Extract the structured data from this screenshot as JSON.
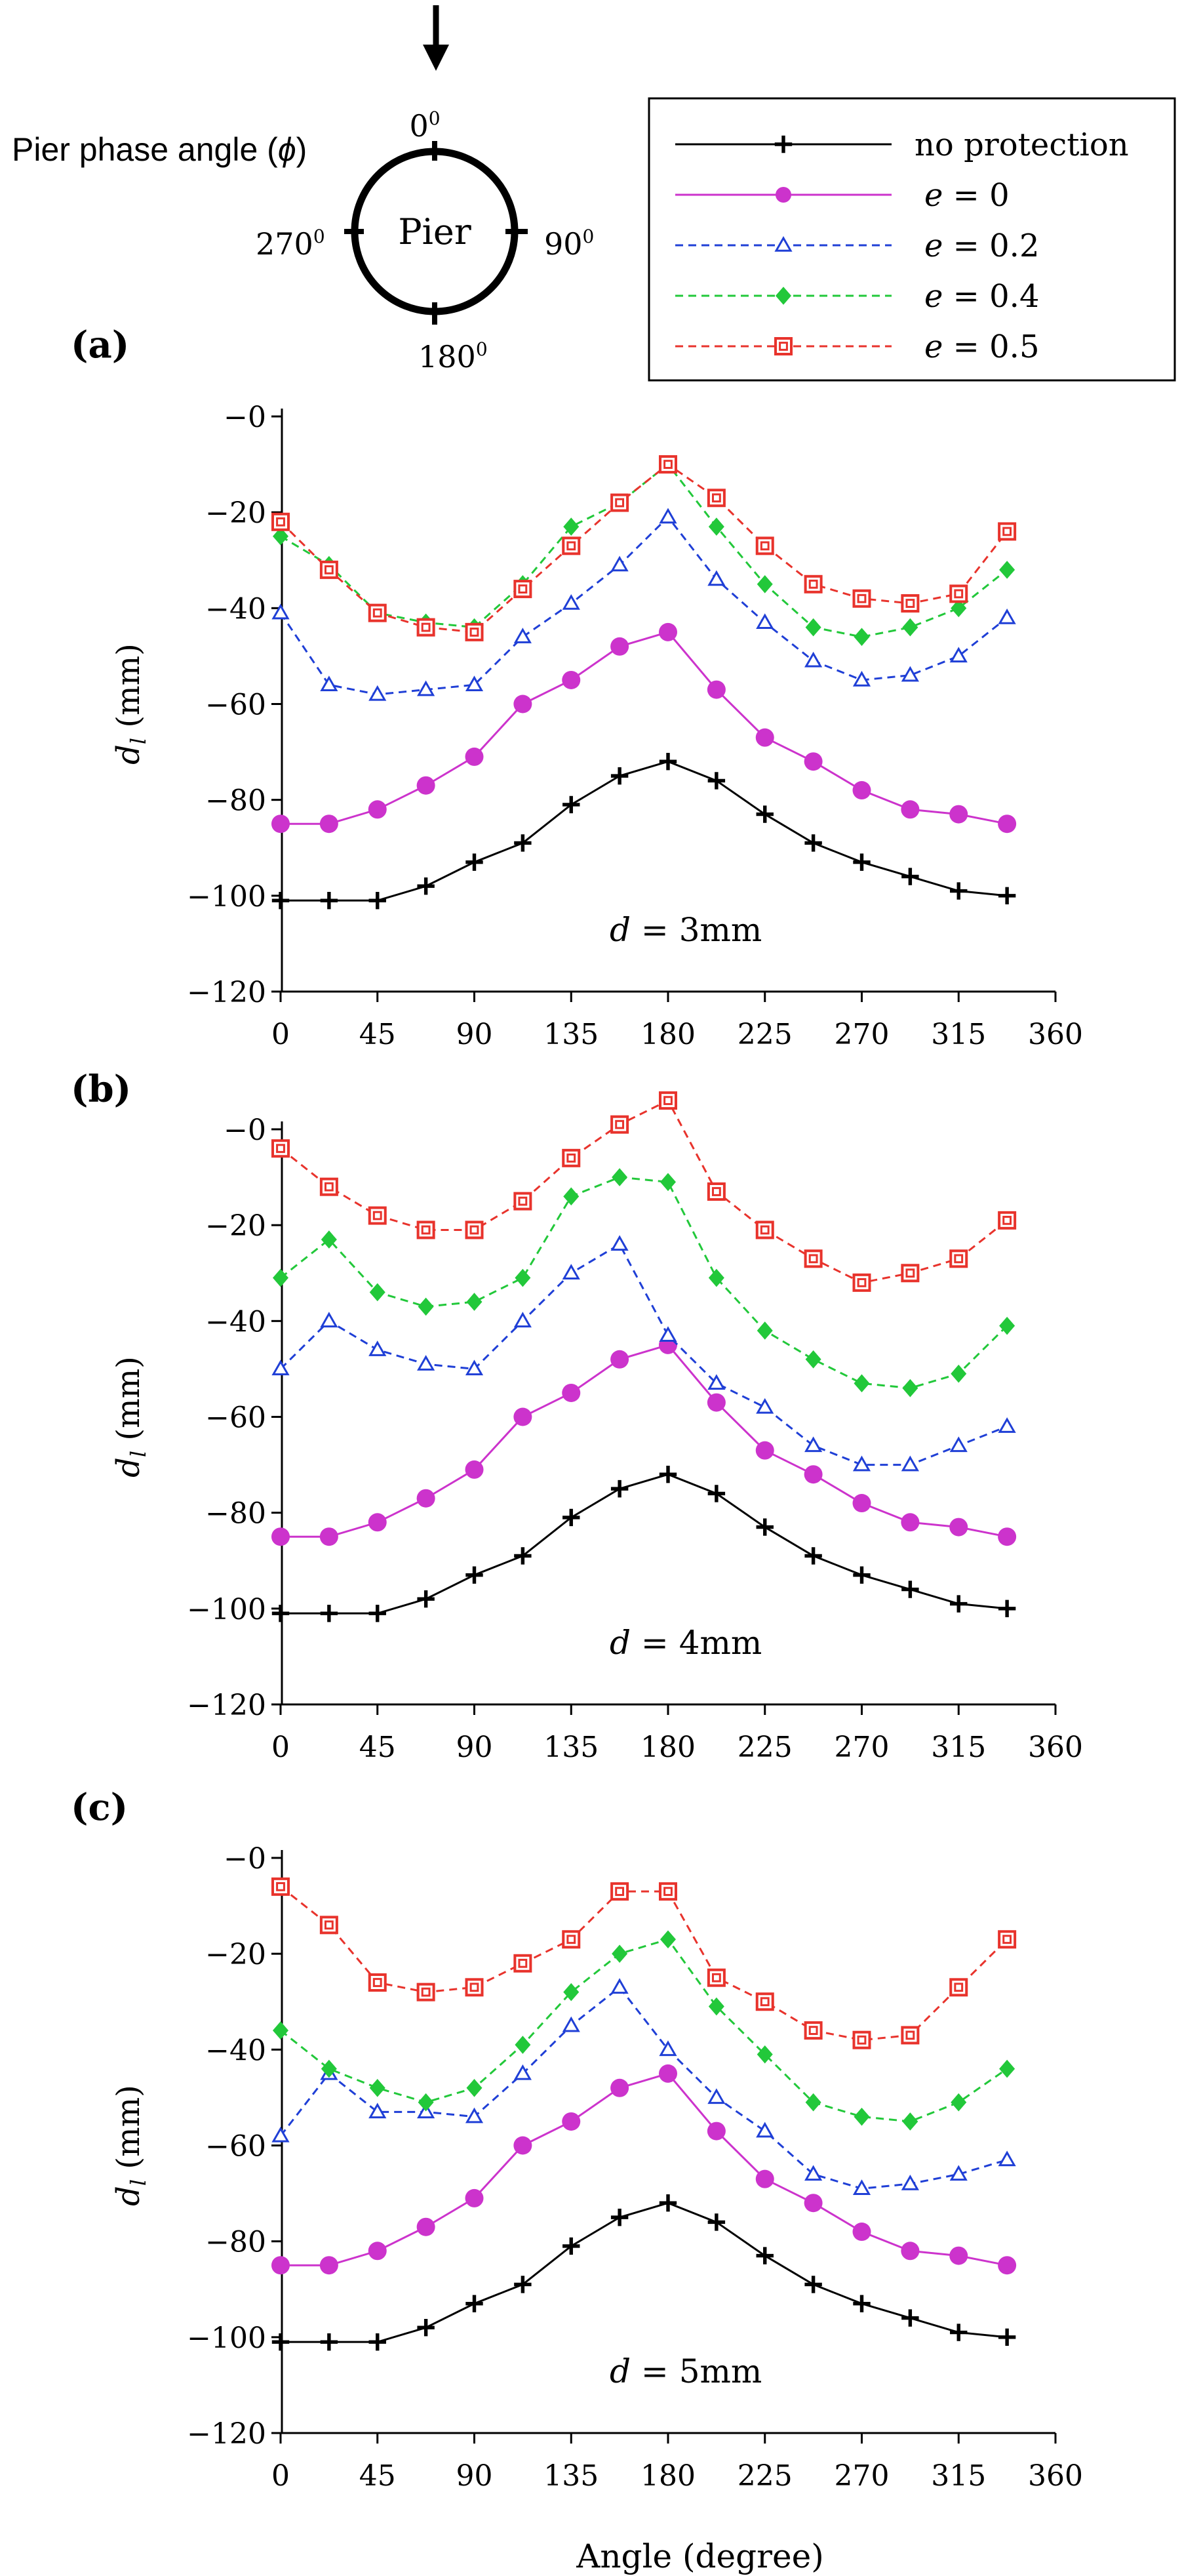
{
  "diagram": {
    "caption": "Pier phase angle (",
    "caption_symbol": "ϕ",
    "caption_close": ")",
    "pier_label": "Pier",
    "angle_top": "0",
    "angle_right": "90",
    "angle_bottom": "180",
    "angle_left": "270",
    "degree_sup": "0"
  },
  "legend": {
    "entries": [
      {
        "label": "no protection",
        "color": "#000000",
        "marker": "plus",
        "dash": "solid"
      },
      {
        "label": "e = 0",
        "color": "#cc33cc",
        "marker": "circle",
        "dash": "solid"
      },
      {
        "label": "e = 0.2",
        "color": "#1f3fd6",
        "marker": "triangle",
        "dash": "dashed"
      },
      {
        "label": "e = 0.4",
        "color": "#22c83a",
        "marker": "diamond",
        "dash": "dashed"
      },
      {
        "label": "e = 0.5",
        "color": "#e8332c",
        "marker": "square",
        "dash": "dashed"
      }
    ]
  },
  "xlabel": "Angle (degree)",
  "chart_data": [
    {
      "type": "line",
      "panel_label": "(a)",
      "annotation": "d = 3mm",
      "ylabel": "d_l (mm)",
      "xlim": [
        0,
        360
      ],
      "ylim": [
        -120,
        0
      ],
      "xticks": [
        0,
        45,
        90,
        135,
        180,
        225,
        270,
        315,
        360
      ],
      "yticks": [
        0,
        -20,
        -40,
        -60,
        -80,
        -100,
        -120
      ],
      "ytick_labels": [
        "−0",
        "−20",
        "−40",
        "−60",
        "−80",
        "−100",
        "−120"
      ],
      "x": [
        0,
        22.5,
        45,
        67.5,
        90,
        112.5,
        135,
        157.5,
        180,
        202.5,
        225,
        247.5,
        270,
        292.5,
        315,
        337.5
      ],
      "series": [
        {
          "name": "no protection",
          "values": [
            -101,
            -101,
            -101,
            -98,
            -93,
            -89,
            -81,
            -75,
            -72,
            -76,
            -83,
            -89,
            -93,
            -96,
            -99,
            -100
          ]
        },
        {
          "name": "e = 0",
          "values": [
            -85,
            -85,
            -82,
            -77,
            -71,
            -60,
            -55,
            -48,
            -45,
            -57,
            -67,
            -72,
            -78,
            -82,
            -83,
            -85
          ]
        },
        {
          "name": "e = 0.2",
          "values": [
            -41,
            -56,
            -58,
            -57,
            -56,
            -46,
            -39,
            -31,
            -21,
            -34,
            -43,
            -51,
            -55,
            -54,
            -50,
            -42
          ]
        },
        {
          "name": "e = 0.4",
          "values": [
            -25,
            -31,
            -41,
            -43,
            -44,
            -35,
            -23,
            -18,
            -10,
            -23,
            -35,
            -44,
            -46,
            -44,
            -40,
            -32
          ]
        },
        {
          "name": "e = 0.5",
          "values": [
            -22,
            -32,
            -41,
            -44,
            -45,
            -36,
            -27,
            -18,
            -10,
            -17,
            -27,
            -35,
            -38,
            -39,
            -37,
            -24
          ]
        }
      ]
    },
    {
      "type": "line",
      "panel_label": "(b)",
      "annotation": "d = 4mm",
      "ylabel": "d_l (mm)",
      "xlim": [
        0,
        360
      ],
      "ylim": [
        -120,
        0
      ],
      "xticks": [
        0,
        45,
        90,
        135,
        180,
        225,
        270,
        315,
        360
      ],
      "yticks": [
        0,
        -20,
        -40,
        -60,
        -80,
        -100,
        -120
      ],
      "ytick_labels": [
        "−0",
        "−20",
        "−40",
        "−60",
        "−80",
        "−100",
        "−120"
      ],
      "x": [
        0,
        22.5,
        45,
        67.5,
        90,
        112.5,
        135,
        157.5,
        180,
        202.5,
        225,
        247.5,
        270,
        292.5,
        315,
        337.5
      ],
      "series": [
        {
          "name": "no protection",
          "values": [
            -101,
            -101,
            -101,
            -98,
            -93,
            -89,
            -81,
            -75,
            -72,
            -76,
            -83,
            -89,
            -93,
            -96,
            -99,
            -100
          ]
        },
        {
          "name": "e = 0",
          "values": [
            -85,
            -85,
            -82,
            -77,
            -71,
            -60,
            -55,
            -48,
            -45,
            -57,
            -67,
            -72,
            -78,
            -82,
            -83,
            -85
          ]
        },
        {
          "name": "e = 0.2",
          "values": [
            -50,
            -40,
            -46,
            -49,
            -50,
            -40,
            -30,
            -24,
            -43,
            -53,
            -58,
            -66,
            -70,
            -70,
            -66,
            -62
          ]
        },
        {
          "name": "e = 0.4",
          "values": [
            -31,
            -23,
            -34,
            -37,
            -36,
            -31,
            -14,
            -10,
            -11,
            -31,
            -42,
            -48,
            -53,
            -54,
            -51,
            -41
          ]
        },
        {
          "name": "e = 0.5",
          "values": [
            -4,
            -12,
            -18,
            -21,
            -21,
            -15,
            -6,
            1,
            6,
            -13,
            -21,
            -27,
            -32,
            -30,
            -27,
            -19
          ]
        }
      ]
    },
    {
      "type": "line",
      "panel_label": "(c)",
      "annotation": "d = 5mm",
      "ylabel": "d_l (mm)",
      "xlim": [
        0,
        360
      ],
      "ylim": [
        -120,
        0
      ],
      "xticks": [
        0,
        45,
        90,
        135,
        180,
        225,
        270,
        315,
        360
      ],
      "yticks": [
        0,
        -20,
        -40,
        -60,
        -80,
        -100,
        -120
      ],
      "ytick_labels": [
        "−0",
        "−20",
        "−40",
        "−60",
        "−80",
        "−100",
        "−120"
      ],
      "x": [
        0,
        22.5,
        45,
        67.5,
        90,
        112.5,
        135,
        157.5,
        180,
        202.5,
        225,
        247.5,
        270,
        292.5,
        315,
        337.5
      ],
      "series": [
        {
          "name": "no protection",
          "values": [
            -101,
            -101,
            -101,
            -98,
            -93,
            -89,
            -81,
            -75,
            -72,
            -76,
            -83,
            -89,
            -93,
            -96,
            -99,
            -100
          ]
        },
        {
          "name": "e = 0",
          "values": [
            -85,
            -85,
            -82,
            -77,
            -71,
            -60,
            -55,
            -48,
            -45,
            -57,
            -67,
            -72,
            -78,
            -82,
            -83,
            -85
          ]
        },
        {
          "name": "e = 0.2",
          "values": [
            -58,
            -45,
            -53,
            -53,
            -54,
            -45,
            -35,
            -27,
            -40,
            -50,
            -57,
            -66,
            -69,
            -68,
            -66,
            -63
          ]
        },
        {
          "name": "e = 0.4",
          "values": [
            -36,
            -44,
            -48,
            -51,
            -48,
            -39,
            -28,
            -20,
            -17,
            -31,
            -41,
            -51,
            -54,
            -55,
            -51,
            -44
          ]
        },
        {
          "name": "e = 0.5",
          "values": [
            -6,
            -14,
            -26,
            -28,
            -27,
            -22,
            -17,
            -7,
            -7,
            -25,
            -30,
            -36,
            -38,
            -37,
            -27,
            -17
          ]
        }
      ]
    }
  ]
}
